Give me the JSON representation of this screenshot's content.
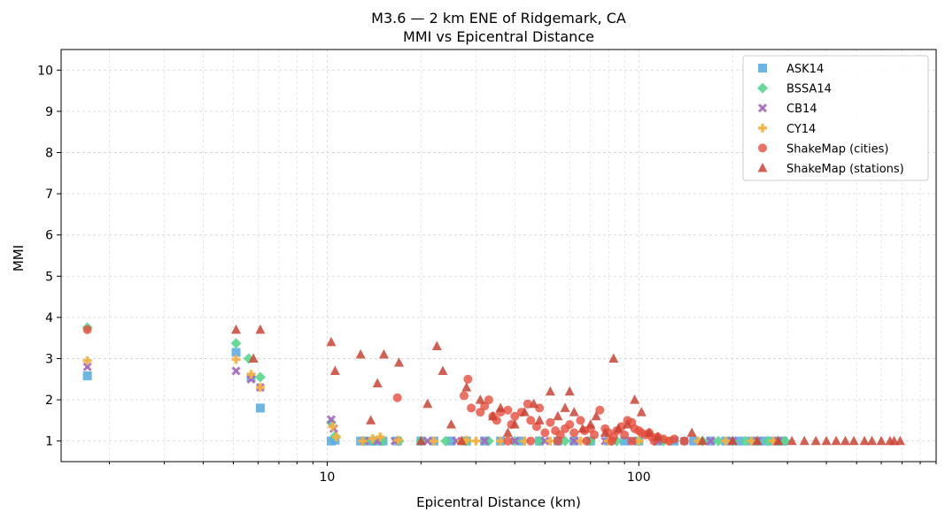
{
  "chart_data": {
    "type": "scatter",
    "title": "M3.6 — 2 km ENE of Ridgemark, CA",
    "subtitle": "MMI vs Epicentral Distance",
    "xlabel": "Epicentral Distance (km)",
    "ylabel": "MMI",
    "xscale": "log",
    "xlim": [
      1.4,
      900
    ],
    "ylim": [
      0.5,
      10.5
    ],
    "xticks": [
      10,
      100
    ],
    "yticks": [
      1,
      2,
      3,
      4,
      5,
      6,
      7,
      8,
      9,
      10
    ],
    "grid": true,
    "legend_position": "top-right",
    "series": [
      {
        "name": "ASK14",
        "marker": "square",
        "color": "#5DADE2",
        "points": [
          [
            1.7,
            2.58
          ],
          [
            5.1,
            3.15
          ],
          [
            5.7,
            2.55
          ],
          [
            6.1,
            1.8
          ],
          [
            10.3,
            1.0
          ],
          [
            10.6,
            1.02
          ],
          [
            12.8,
            1.0
          ],
          [
            13.5,
            1.0
          ],
          [
            14.2,
            1.0
          ],
          [
            15.1,
            1.0
          ],
          [
            16.8,
            1.0
          ],
          [
            20,
            1.0
          ],
          [
            22,
            1.0
          ],
          [
            25,
            1.0
          ],
          [
            28,
            1.0
          ],
          [
            32,
            1.0
          ],
          [
            36,
            1.0
          ],
          [
            42,
            1.0
          ],
          [
            48,
            1.0
          ],
          [
            55,
            1.0
          ],
          [
            62,
            1.0
          ],
          [
            70,
            1.0
          ],
          [
            80,
            1.0
          ],
          [
            90,
            1.0
          ],
          [
            100,
            1.0
          ],
          [
            115,
            1.0
          ],
          [
            130,
            1.0
          ],
          [
            150,
            1.0
          ],
          [
            170,
            1.0
          ],
          [
            190,
            1.0
          ],
          [
            210,
            1.0
          ],
          [
            230,
            1.0
          ],
          [
            250,
            1.0
          ],
          [
            270,
            1.0
          ],
          [
            290,
            1.0
          ]
        ]
      },
      {
        "name": "BSSA14",
        "marker": "diamond",
        "color": "#58D68D",
        "points": [
          [
            1.7,
            3.75
          ],
          [
            5.1,
            3.37
          ],
          [
            5.6,
            3.0
          ],
          [
            6.1,
            2.55
          ],
          [
            10.3,
            1.45
          ],
          [
            10.6,
            1.12
          ],
          [
            13.1,
            1.0
          ],
          [
            14.1,
            1.0
          ],
          [
            15.0,
            1.0
          ],
          [
            17,
            1.0
          ],
          [
            20,
            1.0
          ],
          [
            24,
            1.0
          ],
          [
            28,
            1.0
          ],
          [
            33,
            1.0
          ],
          [
            40,
            1.0
          ],
          [
            48,
            1.0
          ],
          [
            58,
            1.0
          ],
          [
            70,
            1.0
          ],
          [
            85,
            1.0
          ],
          [
            100,
            1.0
          ],
          [
            120,
            1.0
          ],
          [
            140,
            1.0
          ],
          [
            160,
            1.0
          ],
          [
            180,
            1.0
          ],
          [
            200,
            1.0
          ],
          [
            220,
            1.0
          ],
          [
            240,
            1.0
          ],
          [
            260,
            1.0
          ],
          [
            280,
            1.0
          ],
          [
            295,
            1.0
          ]
        ]
      },
      {
        "name": "CB14",
        "marker": "x",
        "color": "#A569BD",
        "points": [
          [
            1.7,
            2.8
          ],
          [
            5.1,
            2.7
          ],
          [
            5.7,
            2.5
          ],
          [
            6.1,
            2.3
          ],
          [
            10.3,
            1.52
          ],
          [
            10.5,
            1.3
          ],
          [
            13.2,
            1.0
          ],
          [
            14.5,
            1.0
          ],
          [
            16.5,
            1.0
          ],
          [
            21,
            1.0
          ],
          [
            26,
            1.0
          ],
          [
            32,
            1.0
          ],
          [
            40,
            1.0
          ],
          [
            50,
            1.0
          ],
          [
            62,
            1.0
          ],
          [
            78,
            1.0
          ],
          [
            95,
            1.0
          ],
          [
            115,
            1.0
          ],
          [
            140,
            1.0
          ],
          [
            170,
            1.0
          ],
          [
            200,
            1.0
          ],
          [
            240,
            1.0
          ],
          [
            280,
            1.0
          ]
        ]
      },
      {
        "name": "CY14",
        "marker": "plus",
        "color": "#F5B041",
        "points": [
          [
            1.7,
            2.95
          ],
          [
            5.1,
            2.98
          ],
          [
            5.7,
            2.62
          ],
          [
            6.1,
            2.3
          ],
          [
            10.4,
            1.35
          ],
          [
            10.7,
            1.1
          ],
          [
            13.0,
            1.0
          ],
          [
            14.0,
            1.06
          ],
          [
            14.8,
            1.1
          ],
          [
            16.9,
            1.02
          ],
          [
            22,
            1.0
          ],
          [
            27,
            1.0
          ],
          [
            28,
            1.02
          ],
          [
            30,
            1.0
          ],
          [
            36,
            1.0
          ],
          [
            43,
            1.0
          ],
          [
            52,
            1.0
          ],
          [
            65,
            1.0
          ],
          [
            80,
            1.0
          ],
          [
            100,
            1.0
          ],
          [
            125,
            1.0
          ],
          [
            155,
            1.0
          ],
          [
            190,
            1.0
          ],
          [
            230,
            1.0
          ],
          [
            270,
            1.0
          ]
        ]
      },
      {
        "name": "ShakeMap (cities)",
        "marker": "circle",
        "color": "#E74C3C",
        "points": [
          [
            1.7,
            3.7
          ],
          [
            16.8,
            2.05
          ],
          [
            27.5,
            2.1
          ],
          [
            28.3,
            2.5
          ],
          [
            29,
            1.8
          ],
          [
            31,
            1.7
          ],
          [
            32,
            1.85
          ],
          [
            33,
            2.0
          ],
          [
            34,
            1.6
          ],
          [
            35,
            1.5
          ],
          [
            36,
            1.7
          ],
          [
            38,
            1.75
          ],
          [
            39,
            1.4
          ],
          [
            40,
            1.6
          ],
          [
            42,
            1.7
          ],
          [
            44,
            1.9
          ],
          [
            45,
            1.5
          ],
          [
            47,
            1.35
          ],
          [
            48,
            1.8
          ],
          [
            50,
            1.2
          ],
          [
            52,
            1.45
          ],
          [
            54,
            1.25
          ],
          [
            56,
            1.15
          ],
          [
            58,
            1.3
          ],
          [
            60,
            1.4
          ],
          [
            62,
            1.2
          ],
          [
            65,
            1.5
          ],
          [
            67,
            1.25
          ],
          [
            70,
            1.3
          ],
          [
            72,
            1.15
          ],
          [
            75,
            1.75
          ],
          [
            78,
            1.3
          ],
          [
            80,
            1.2
          ],
          [
            83,
            1.1
          ],
          [
            85,
            1.25
          ],
          [
            88,
            1.35
          ],
          [
            90,
            1.15
          ],
          [
            92,
            1.5
          ],
          [
            95,
            1.45
          ],
          [
            97,
            1.3
          ],
          [
            100,
            1.25
          ],
          [
            102,
            1.2
          ],
          [
            105,
            1.15
          ],
          [
            108,
            1.2
          ],
          [
            110,
            1.1
          ],
          [
            115,
            1.1
          ],
          [
            120,
            1.05
          ],
          [
            130,
            1.05
          ],
          [
            38,
            1.0
          ],
          [
            45,
            1.0
          ],
          [
            55,
            1.0
          ],
          [
            68,
            1.0
          ],
          [
            82,
            1.0
          ],
          [
            95,
            1.0
          ],
          [
            112,
            1.0
          ],
          [
            125,
            1.0
          ],
          [
            140,
            1.0
          ]
        ]
      },
      {
        "name": "ShakeMap (stations)",
        "marker": "triangle",
        "color": "#CB4335",
        "points": [
          [
            5.1,
            3.7
          ],
          [
            5.8,
            3.0
          ],
          [
            6.1,
            3.7
          ],
          [
            10.3,
            3.4
          ],
          [
            10.6,
            2.7
          ],
          [
            12.8,
            3.1
          ],
          [
            13.8,
            1.5
          ],
          [
            14.5,
            2.4
          ],
          [
            15.2,
            3.1
          ],
          [
            17,
            2.9
          ],
          [
            20,
            1.0
          ],
          [
            21,
            1.9
          ],
          [
            22.5,
            3.3
          ],
          [
            23.5,
            2.7
          ],
          [
            25,
            1.4
          ],
          [
            27,
            1.0
          ],
          [
            28,
            2.3
          ],
          [
            31,
            2.0
          ],
          [
            34,
            1.6
          ],
          [
            36,
            1.8
          ],
          [
            38,
            1.2
          ],
          [
            40,
            1.4
          ],
          [
            43,
            1.7
          ],
          [
            46,
            1.9
          ],
          [
            48,
            1.5
          ],
          [
            52,
            2.2
          ],
          [
            55,
            1.6
          ],
          [
            58,
            1.8
          ],
          [
            60,
            2.2
          ],
          [
            62,
            1.7
          ],
          [
            66,
            1.3
          ],
          [
            70,
            1.4
          ],
          [
            73,
            1.6
          ],
          [
            78,
            1.2
          ],
          [
            83,
            3.0
          ],
          [
            86,
            1.3
          ],
          [
            92,
            1.4
          ],
          [
            97,
            2.0
          ],
          [
            102,
            1.7
          ],
          [
            108,
            1.2
          ],
          [
            115,
            1.1
          ],
          [
            148,
            1.2
          ],
          [
            160,
            1.0
          ],
          [
            200,
            1.0
          ],
          [
            240,
            1.0
          ],
          [
            280,
            1.0
          ],
          [
            310,
            1.0
          ],
          [
            340,
            1.0
          ],
          [
            370,
            1.0
          ],
          [
            400,
            1.0
          ],
          [
            430,
            1.0
          ],
          [
            460,
            1.0
          ],
          [
            490,
            1.0
          ],
          [
            530,
            1.0
          ],
          [
            560,
            1.0
          ],
          [
            600,
            1.0
          ],
          [
            640,
            1.0
          ],
          [
            660,
            1.0
          ],
          [
            690,
            1.0
          ]
        ]
      }
    ]
  }
}
